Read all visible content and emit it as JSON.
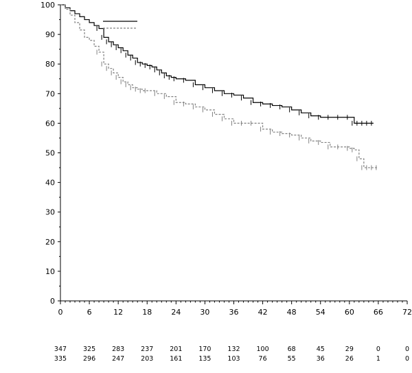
{
  "chart_data": {
    "type": "line",
    "title": "",
    "xlabel": "",
    "ylabel": "",
    "xlim": [
      0,
      72
    ],
    "ylim": [
      0,
      100
    ],
    "x_ticks": [
      0,
      6,
      12,
      18,
      24,
      30,
      36,
      42,
      48,
      54,
      60,
      66,
      72
    ],
    "y_ticks": [
      0,
      10,
      20,
      30,
      40,
      50,
      60,
      70,
      80,
      90,
      100
    ],
    "grid": false,
    "legend": {
      "placement": "top-left",
      "entries": []
    },
    "series": [
      {
        "style": "solid",
        "color": "#000000",
        "x": [
          0,
          1,
          2,
          3,
          4,
          5,
          6,
          7,
          8,
          9,
          10,
          11,
          12,
          13,
          14,
          15,
          16,
          17,
          18,
          19,
          20,
          21,
          22,
          23,
          24,
          26,
          28,
          30,
          32,
          34,
          36,
          38,
          40,
          42,
          44,
          46,
          48,
          50,
          52,
          54,
          56,
          58,
          60,
          61,
          62,
          63,
          64,
          65
        ],
        "y": [
          100,
          99,
          98,
          97,
          96,
          95,
          94,
          93,
          92,
          89,
          87.5,
          86.5,
          85.5,
          84.5,
          83,
          82,
          80.5,
          80,
          79.5,
          79,
          78,
          77,
          76,
          75.5,
          75,
          74.5,
          73,
          72,
          71,
          70,
          69.5,
          68.5,
          67,
          66.5,
          66,
          65.5,
          64.5,
          63.5,
          62.5,
          62,
          62,
          62,
          62,
          60,
          60,
          60,
          60,
          60
        ]
      },
      {
        "style": "dashed",
        "color": "#808080",
        "x": [
          0,
          1,
          2,
          3,
          4,
          5,
          6,
          7,
          8,
          9,
          10,
          11,
          12,
          13,
          14,
          15,
          16,
          17,
          18,
          20,
          22,
          24,
          26,
          28,
          30,
          32,
          34,
          36,
          38,
          40,
          42,
          44,
          46,
          48,
          50,
          52,
          54,
          56,
          58,
          60,
          61,
          62,
          63,
          64,
          65,
          66
        ],
        "y": [
          100,
          98.5,
          96.5,
          94,
          91.5,
          89,
          88,
          86,
          84,
          80,
          78.5,
          77,
          75.5,
          74,
          73,
          72,
          71.5,
          71,
          71,
          70,
          69,
          67,
          66.5,
          65.5,
          64.5,
          63,
          61.5,
          60,
          60,
          60,
          58,
          57,
          56.5,
          56,
          55,
          54,
          53.5,
          52,
          52,
          51.5,
          51,
          48,
          45,
          45,
          45,
          45
        ]
      }
    ],
    "risk_table": {
      "x": [
        0,
        6,
        12,
        18,
        24,
        30,
        36,
        42,
        48,
        54,
        60,
        66,
        72
      ],
      "rows": [
        {
          "values": [
            "347",
            "325",
            "283",
            "237",
            "201",
            "170",
            "132",
            "100",
            "68",
            "45",
            "29",
            "0",
            "0"
          ]
        },
        {
          "values": [
            "335",
            "296",
            "247",
            "203",
            "161",
            "135",
            "103",
            "76",
            "55",
            "36",
            "26",
            "1",
            "0"
          ]
        }
      ]
    }
  }
}
